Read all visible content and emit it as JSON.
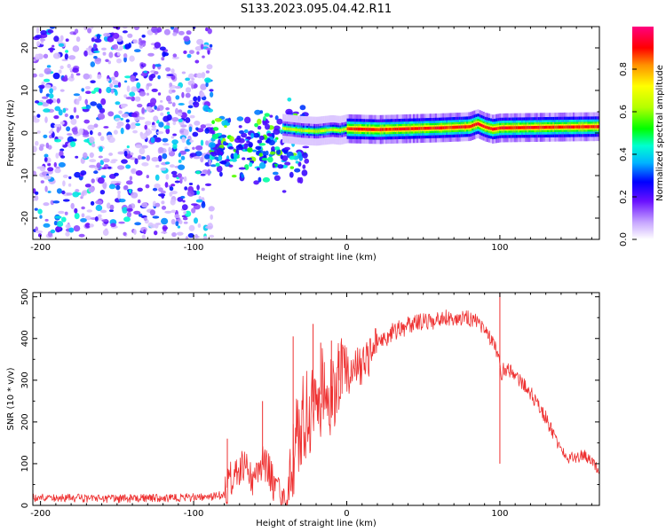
{
  "title": "S133.2023.095.04.42.R11",
  "colors": {
    "snr_line": "#ee3030",
    "axis": "#000000",
    "spectrum_low": "#e6d8ff",
    "spectrum_mid": "#7a22ff",
    "spectrum_peak": "#ff1a1a"
  },
  "chart_data": [
    {
      "type": "heatmap",
      "title": "",
      "xlabel": "Height of straight line (km)",
      "ylabel": "Frequency (Hz)",
      "xlim": [
        -205,
        165
      ],
      "ylim": [
        -25,
        25
      ],
      "x_ticks": [
        "-200",
        "-100",
        "0",
        "100"
      ],
      "x_tick_values": [
        -200,
        -100,
        0,
        100
      ],
      "y_ticks": [
        "20",
        "10",
        "0",
        "-10",
        "-20"
      ],
      "y_tick_values": [
        20,
        10,
        0,
        -10,
        -20
      ],
      "regions": [
        {
          "x_range": [
            -205,
            -88
          ],
          "freq_range": [
            -25,
            25
          ],
          "amplitude": [
            0.05,
            0.45
          ],
          "pattern": "broadband noise"
        },
        {
          "x_range": [
            -88,
            -25
          ],
          "freq_range": [
            -15,
            10
          ],
          "amplitude": [
            0.2,
            0.6
          ],
          "pattern": "scattered clusters"
        },
        {
          "x_range": [
            -25,
            165
          ],
          "freq_range": [
            -1,
            3
          ],
          "amplitude": [
            0.5,
            1.0
          ],
          "pattern": "narrow band"
        }
      ],
      "peak_ridge": {
        "x": [
          -40,
          -30,
          -20,
          -15,
          -10,
          -5,
          0,
          20,
          40,
          60,
          80,
          85,
          90,
          95,
          100,
          120,
          140,
          165
        ],
        "freq": [
          1.0,
          0.6,
          0.4,
          0.6,
          0.8,
          0.6,
          1.0,
          0.8,
          1.0,
          1.2,
          1.5,
          2.2,
          1.4,
          0.9,
          1.2,
          1.3,
          1.4,
          1.5
        ]
      },
      "colorbar": {
        "label": "Normalized spectral amplitude",
        "range": [
          0.0,
          1.0
        ],
        "ticks": [
          "0.0",
          "0.2",
          "0.4",
          "0.6",
          "0.8"
        ],
        "tick_values": [
          0.0,
          0.2,
          0.4,
          0.6,
          0.8
        ]
      }
    },
    {
      "type": "line",
      "title": "",
      "xlabel": "Height of straight line (km)",
      "ylabel": "SNR (10 * v/v)",
      "xlim": [
        -205,
        165
      ],
      "ylim": [
        0,
        510
      ],
      "x_ticks": [
        "-200",
        "-100",
        "0",
        "100"
      ],
      "x_tick_values": [
        -200,
        -100,
        0,
        100
      ],
      "y_ticks": [
        "0",
        "100",
        "200",
        "300",
        "400",
        "500"
      ],
      "y_tick_values": [
        0,
        100,
        200,
        300,
        400,
        500
      ],
      "series": [
        {
          "color": "#ee3030",
          "x": [
            -205,
            -180,
            -150,
            -120,
            -90,
            -80,
            -76,
            -70,
            -65,
            -60,
            -56,
            -52,
            -50,
            -45,
            -42,
            -40,
            -35,
            -30,
            -25,
            -20,
            -15,
            -10,
            -5,
            0,
            5,
            10,
            15,
            20,
            30,
            40,
            50,
            60,
            70,
            80,
            85,
            90,
            95,
            98,
            100,
            101,
            102,
            105,
            110,
            115,
            120,
            125,
            130,
            135,
            140,
            145,
            150,
            155,
            160,
            165
          ],
          "y": [
            18,
            18,
            16,
            18,
            20,
            25,
            60,
            90,
            80,
            60,
            100,
            90,
            70,
            30,
            10,
            25,
            120,
            190,
            230,
            260,
            270,
            280,
            300,
            310,
            320,
            340,
            360,
            385,
            415,
            430,
            440,
            445,
            450,
            450,
            445,
            420,
            390,
            370,
            330,
            300,
            330,
            325,
            310,
            295,
            270,
            240,
            210,
            170,
            130,
            115,
            115,
            120,
            110,
            75
          ],
          "spikes": [
            {
              "x": -78,
              "y": 160
            },
            {
              "x": -55,
              "y": 250
            },
            {
              "x": -35,
              "y": 405
            },
            {
              "x": -22,
              "y": 435
            },
            {
              "x": -17,
              "y": 390
            },
            {
              "x": -10,
              "y": 395
            },
            {
              "x": -5,
              "y": 370
            },
            {
              "x": 100,
              "y": 510
            },
            {
              "x": 100,
              "y": 100
            }
          ]
        }
      ]
    }
  ]
}
